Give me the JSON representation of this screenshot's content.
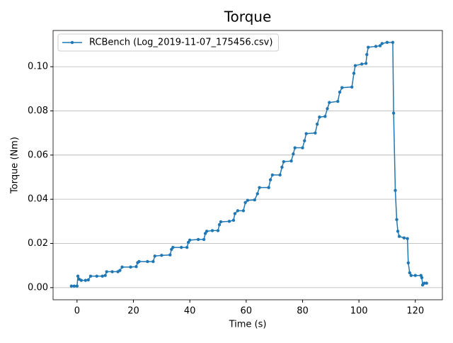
{
  "chart_data": {
    "type": "line",
    "title": "Torque",
    "xlabel": "Time (s)",
    "ylabel": "Torque (Nm)",
    "xlim": [
      -8.5,
      129.6
    ],
    "ylim": [
      -0.0055,
      0.1164
    ],
    "xticks": [
      0,
      20,
      40,
      60,
      80,
      100,
      120
    ],
    "yticks": [
      {
        "value": 0,
        "label": "0.00"
      },
      {
        "value": 0.02,
        "label": "0.02"
      },
      {
        "value": 0.04,
        "label": "0.04"
      },
      {
        "value": 0.06,
        "label": "0.06"
      },
      {
        "value": 0.08,
        "label": "0.08"
      },
      {
        "value": 0.1,
        "label": "0.10"
      }
    ],
    "grid": "y",
    "legend": "upper left",
    "series": [
      {
        "name": "RCBench (Log_2019-11-07_175456.csv)",
        "color": "#1f77b4",
        "x": [
          -2,
          -1,
          0,
          0.3,
          0.8,
          1.5,
          3,
          4,
          4.8,
          7,
          9,
          10,
          10.5,
          12.5,
          14.5,
          15.2,
          16,
          19,
          21,
          21.5,
          22,
          25,
          27,
          27.6,
          30,
          33,
          33.5,
          34,
          37,
          39,
          39.5,
          40,
          43,
          45,
          45.5,
          46,
          48,
          50,
          50.5,
          51,
          54,
          55.5,
          56,
          57,
          59,
          59.7,
          60.5,
          63,
          64,
          64.7,
          68,
          68.6,
          69.3,
          72,
          72.7,
          73.3,
          76,
          76.7,
          77.3,
          80,
          80.7,
          81.3,
          84.5,
          85.2,
          86,
          88,
          88.8,
          89.5,
          92.5,
          93.2,
          94,
          97.5,
          98.2,
          98.7,
          101,
          102.5,
          102.8,
          103.3,
          106,
          107.5,
          108.2,
          110,
          112,
          112.3,
          112.9,
          113.4,
          113.8,
          114.3,
          116,
          117.2,
          117.5,
          118,
          118.5,
          120,
          122,
          122.3,
          122.6,
          123.2,
          124
        ],
        "values": [
          0.0007,
          0.0007,
          0.0007,
          0.0052,
          0.0038,
          0.0033,
          0.0033,
          0.0035,
          0.0052,
          0.0052,
          0.0052,
          0.0055,
          0.0072,
          0.0072,
          0.0072,
          0.0078,
          0.0093,
          0.0093,
          0.0095,
          0.0113,
          0.0118,
          0.0118,
          0.0118,
          0.0143,
          0.0146,
          0.0148,
          0.0173,
          0.0182,
          0.0182,
          0.0182,
          0.0205,
          0.0215,
          0.0218,
          0.0218,
          0.0245,
          0.0255,
          0.0258,
          0.0258,
          0.0285,
          0.0298,
          0.03,
          0.0305,
          0.0335,
          0.0348,
          0.0348,
          0.0385,
          0.0395,
          0.0397,
          0.0425,
          0.0453,
          0.0453,
          0.0488,
          0.051,
          0.051,
          0.0545,
          0.057,
          0.0573,
          0.0605,
          0.0633,
          0.0633,
          0.0665,
          0.0697,
          0.07,
          0.074,
          0.0772,
          0.0775,
          0.081,
          0.0838,
          0.0843,
          0.0885,
          0.0905,
          0.0908,
          0.097,
          0.1005,
          0.1012,
          0.1015,
          0.1055,
          0.1088,
          0.1092,
          0.1095,
          0.1105,
          0.111,
          0.111,
          0.079,
          0.044,
          0.0308,
          0.0255,
          0.0232,
          0.0225,
          0.0222,
          0.0112,
          0.0067,
          0.0055,
          0.0055,
          0.0055,
          0.0045,
          0.0012,
          0.002,
          0.002
        ]
      }
    ]
  }
}
